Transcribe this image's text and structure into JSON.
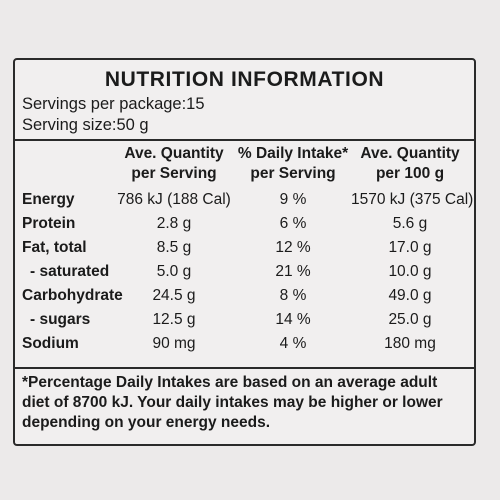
{
  "panel": {
    "title": "NUTRITION INFORMATION",
    "servings_per_package": "Servings per package:15",
    "serving_size": "Serving size:50 g"
  },
  "columns": {
    "c1_line1": "Ave. Quantity",
    "c1_line2": "per Serving",
    "c2_line1": "% Daily Intake*",
    "c2_line2": "per Serving",
    "c3_line1": "Ave. Quantity",
    "c3_line2": "per 100 g"
  },
  "rows": [
    {
      "label": "Energy",
      "per_serving": "786  kJ (188 Cal)",
      "daily_intake": "9 %",
      "per_100g": "1570 kJ (375 Cal)"
    },
    {
      "label": "Protein",
      "per_serving": "2.8 g",
      "daily_intake": "6 %",
      "per_100g": "5.6 g"
    },
    {
      "label": "Fat, total",
      "per_serving": "8.5 g",
      "daily_intake": "12 %",
      "per_100g": "17.0 g"
    },
    {
      "label": "- saturated",
      "per_serving": "5.0 g",
      "daily_intake": "21 %",
      "per_100g": "10.0 g"
    },
    {
      "label": "Carbohydrate",
      "per_serving": "24.5 g",
      "daily_intake": "8 %",
      "per_100g": "49.0 g"
    },
    {
      "label": "- sugars",
      "per_serving": "12.5 g",
      "daily_intake": "14 %",
      "per_100g": "25.0 g"
    },
    {
      "label": "Sodium",
      "per_serving": "90 mg",
      "daily_intake": "4 %",
      "per_100g": "180 mg"
    }
  ],
  "footnote": "*Percentage Daily Intakes are based on an average adult diet of 8700 kJ. Your daily intakes may be higher or lower depending on your energy needs."
}
